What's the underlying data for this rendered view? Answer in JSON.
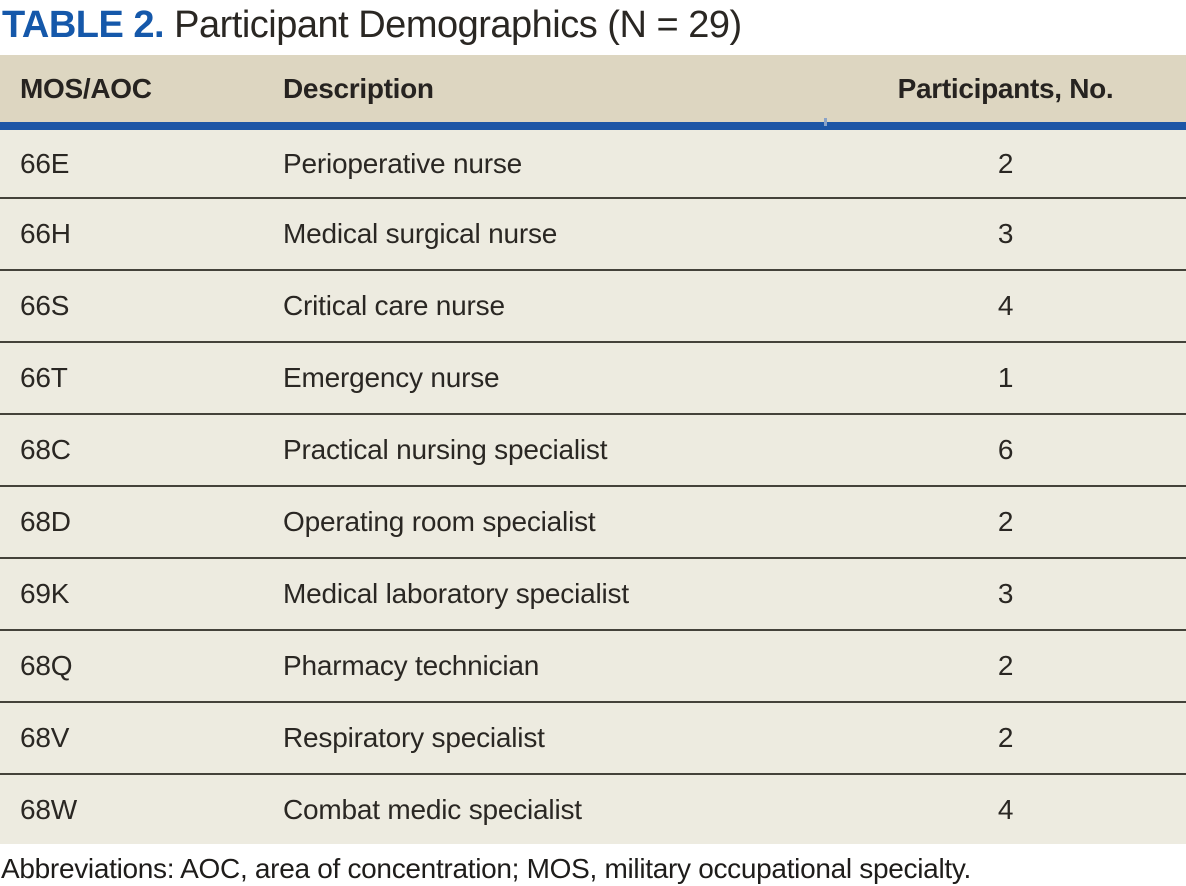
{
  "title": {
    "label": "TABLE 2.",
    "text": " Participant Demographics (N = 29)"
  },
  "table": {
    "columns": [
      "MOS/AOC",
      "Description",
      "Participants, No."
    ],
    "rows": [
      {
        "code": "66E",
        "description": "Perioperative nurse",
        "participants": 2
      },
      {
        "code": "66H",
        "description": "Medical surgical nurse",
        "participants": 3
      },
      {
        "code": "66S",
        "description": "Critical care nurse",
        "participants": 4
      },
      {
        "code": "66T",
        "description": "Emergency nurse",
        "participants": 1
      },
      {
        "code": "68C",
        "description": "Practical nursing specialist",
        "participants": 6
      },
      {
        "code": "68D",
        "description": "Operating room specialist",
        "participants": 2
      },
      {
        "code": "69K",
        "description": "Medical laboratory specialist",
        "participants": 3
      },
      {
        "code": "68Q",
        "description": "Pharmacy technician",
        "participants": 2
      },
      {
        "code": "68V",
        "description": "Respiratory specialist",
        "participants": 2
      },
      {
        "code": "68W",
        "description": "Combat medic specialist",
        "participants": 4
      }
    ]
  },
  "footnote": "Abbreviations: AOC, area of concentration; MOS, military occupational specialty.",
  "colors": {
    "title_accent": "#1558aa",
    "rule_blue": "#1d56a6",
    "header_bg": "#ddd6c1",
    "row_bg": "#edebe0",
    "separator": "#44423a",
    "header_text": "#262320",
    "body_text": "#2a2723",
    "footnote_text": "#1e1c1a"
  }
}
